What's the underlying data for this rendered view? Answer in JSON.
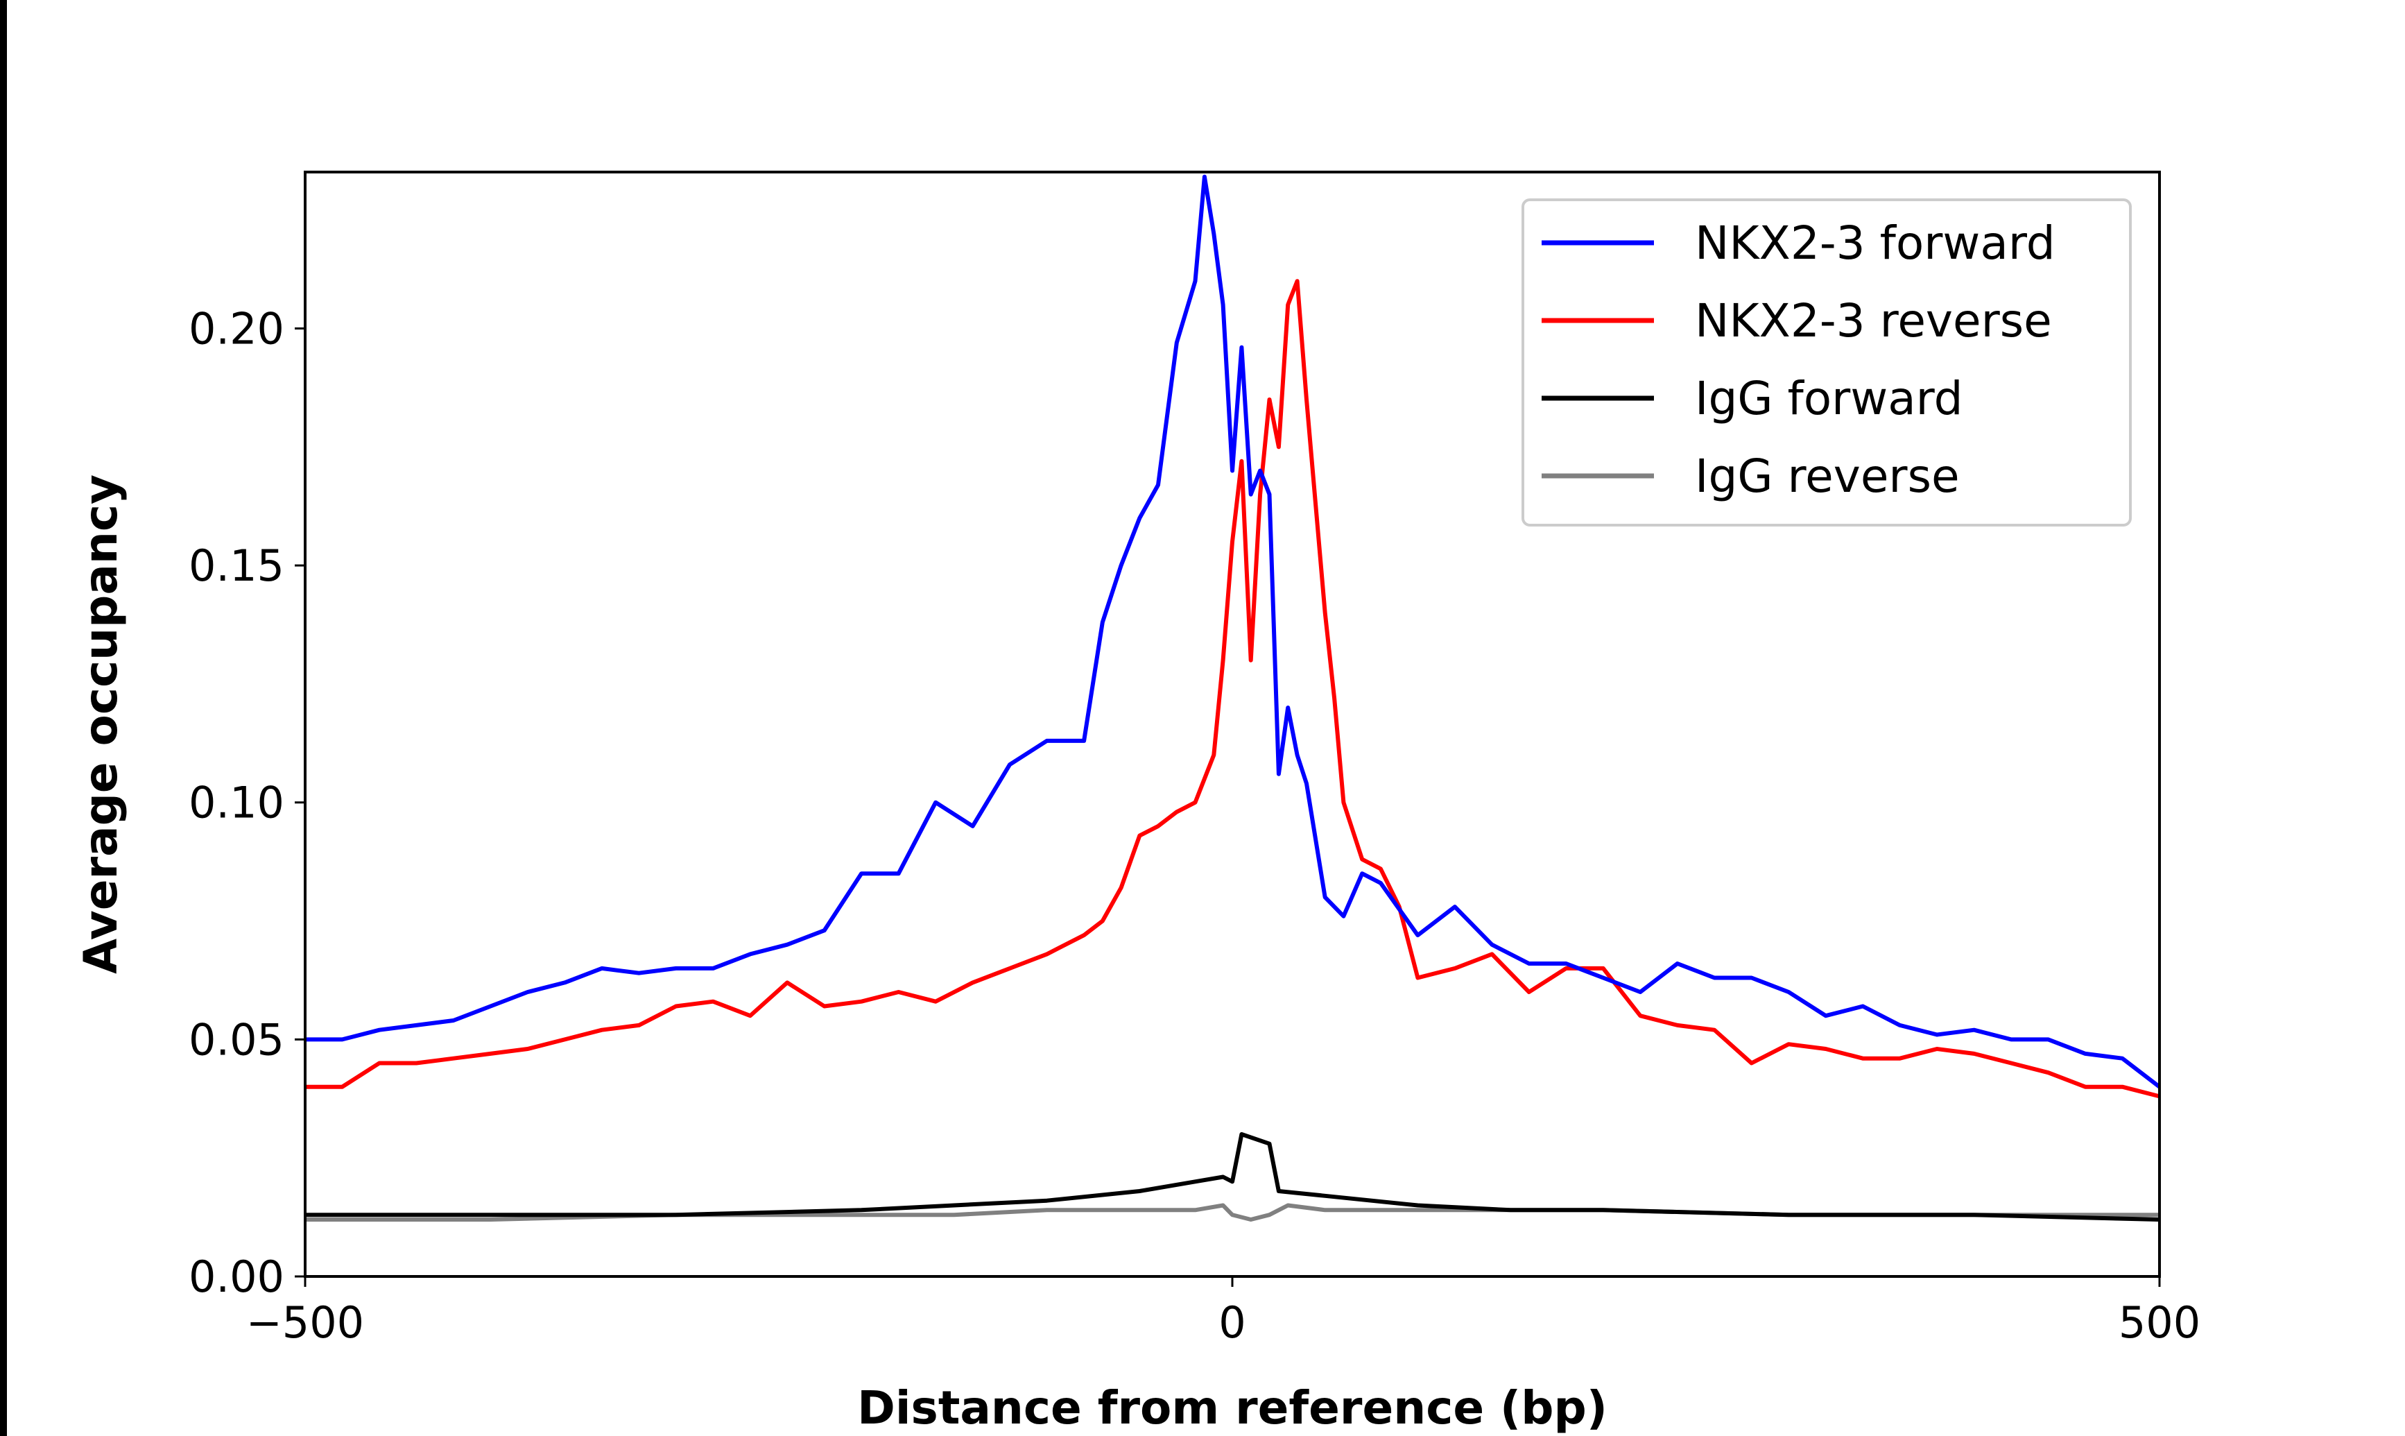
{
  "chart_data": {
    "type": "line",
    "title": "",
    "xlabel": "Distance from reference (bp)",
    "ylabel": "Average occupancy",
    "xlim": [
      -500,
      500
    ],
    "ylim": [
      0,
      0.233
    ],
    "xticks": [
      -500,
      0,
      500
    ],
    "xtick_labels": [
      "−500",
      "0",
      "500"
    ],
    "yticks": [
      0,
      0.05,
      0.1,
      0.15,
      0.2
    ],
    "ytick_labels": [
      "0.00",
      "0.05",
      "0.10",
      "0.15",
      "0.20"
    ],
    "grid": false,
    "legend_placement": "upper-right",
    "series": [
      {
        "name": "NKX2-3 forward",
        "color": "#0000ff",
        "x": [
          -500,
          -480,
          -460,
          -440,
          -420,
          -400,
          -380,
          -360,
          -340,
          -320,
          -300,
          -280,
          -260,
          -240,
          -220,
          -200,
          -180,
          -160,
          -140,
          -120,
          -100,
          -80,
          -70,
          -60,
          -50,
          -40,
          -30,
          -20,
          -15,
          -10,
          -5,
          0,
          5,
          10,
          15,
          20,
          25,
          30,
          35,
          40,
          50,
          60,
          70,
          80,
          100,
          120,
          140,
          160,
          180,
          200,
          220,
          240,
          260,
          280,
          300,
          320,
          340,
          360,
          380,
          400,
          420,
          440,
          460,
          480,
          500
        ],
        "y": [
          0.05,
          0.05,
          0.052,
          0.053,
          0.054,
          0.057,
          0.06,
          0.062,
          0.065,
          0.064,
          0.065,
          0.065,
          0.068,
          0.07,
          0.073,
          0.085,
          0.085,
          0.1,
          0.095,
          0.108,
          0.113,
          0.113,
          0.138,
          0.15,
          0.16,
          0.167,
          0.197,
          0.21,
          0.232,
          0.22,
          0.205,
          0.17,
          0.196,
          0.165,
          0.17,
          0.165,
          0.106,
          0.12,
          0.11,
          0.104,
          0.08,
          0.076,
          0.085,
          0.083,
          0.072,
          0.078,
          0.07,
          0.066,
          0.066,
          0.063,
          0.06,
          0.066,
          0.063,
          0.063,
          0.06,
          0.055,
          0.057,
          0.053,
          0.051,
          0.052,
          0.05,
          0.05,
          0.047,
          0.046,
          0.04
        ]
      },
      {
        "name": "NKX2-3 reverse",
        "color": "#ff0000",
        "x": [
          -500,
          -480,
          -460,
          -440,
          -420,
          -400,
          -380,
          -360,
          -340,
          -320,
          -300,
          -280,
          -260,
          -240,
          -220,
          -200,
          -180,
          -160,
          -140,
          -120,
          -100,
          -80,
          -70,
          -60,
          -50,
          -40,
          -30,
          -20,
          -10,
          -5,
          0,
          5,
          10,
          15,
          20,
          25,
          30,
          35,
          40,
          50,
          55,
          60,
          70,
          80,
          90,
          100,
          120,
          140,
          160,
          180,
          200,
          220,
          240,
          260,
          280,
          300,
          320,
          340,
          360,
          380,
          400,
          420,
          440,
          460,
          480,
          500
        ],
        "y": [
          0.04,
          0.04,
          0.045,
          0.045,
          0.046,
          0.047,
          0.048,
          0.05,
          0.052,
          0.053,
          0.057,
          0.058,
          0.055,
          0.062,
          0.057,
          0.058,
          0.06,
          0.058,
          0.062,
          0.065,
          0.068,
          0.072,
          0.075,
          0.082,
          0.093,
          0.095,
          0.098,
          0.1,
          0.11,
          0.13,
          0.155,
          0.172,
          0.13,
          0.165,
          0.185,
          0.175,
          0.205,
          0.21,
          0.185,
          0.14,
          0.122,
          0.1,
          0.088,
          0.086,
          0.078,
          0.063,
          0.065,
          0.068,
          0.06,
          0.065,
          0.065,
          0.055,
          0.053,
          0.052,
          0.045,
          0.049,
          0.048,
          0.046,
          0.046,
          0.048,
          0.047,
          0.045,
          0.043,
          0.04,
          0.04,
          0.038
        ]
      },
      {
        "name": "IgG forward",
        "color": "#000000",
        "x": [
          -500,
          -400,
          -300,
          -200,
          -150,
          -100,
          -50,
          -20,
          -5,
          0,
          5,
          20,
          25,
          50,
          100,
          150,
          200,
          300,
          400,
          500
        ],
        "y": [
          0.013,
          0.013,
          0.013,
          0.014,
          0.015,
          0.016,
          0.018,
          0.02,
          0.021,
          0.02,
          0.03,
          0.028,
          0.018,
          0.017,
          0.015,
          0.014,
          0.014,
          0.013,
          0.013,
          0.012
        ]
      },
      {
        "name": "IgG reverse",
        "color": "#808080",
        "x": [
          -500,
          -400,
          -300,
          -200,
          -150,
          -100,
          -50,
          -20,
          -5,
          0,
          10,
          20,
          30,
          50,
          100,
          150,
          200,
          300,
          400,
          500
        ],
        "y": [
          0.012,
          0.012,
          0.013,
          0.013,
          0.013,
          0.014,
          0.014,
          0.014,
          0.015,
          0.013,
          0.012,
          0.013,
          0.015,
          0.014,
          0.014,
          0.014,
          0.014,
          0.013,
          0.013,
          0.013
        ]
      }
    ]
  }
}
